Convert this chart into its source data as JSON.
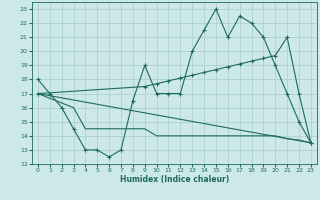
{
  "xlabel": "Humidex (Indice chaleur)",
  "xlim": [
    -0.5,
    23.5
  ],
  "ylim": [
    12,
    23.5
  ],
  "yticks": [
    12,
    13,
    14,
    15,
    16,
    17,
    18,
    19,
    20,
    21,
    22,
    23
  ],
  "xticks": [
    0,
    1,
    2,
    3,
    4,
    5,
    6,
    7,
    8,
    9,
    10,
    11,
    12,
    13,
    14,
    15,
    16,
    17,
    18,
    19,
    20,
    21,
    22,
    23
  ],
  "bg_color": "#cce8e8",
  "grid_color": "#aacccc",
  "line_color": "#1e6b5e",
  "line1_x": [
    0,
    1,
    2,
    3,
    4,
    5,
    6,
    7,
    8,
    9,
    10,
    11,
    12,
    13,
    14,
    15,
    16,
    17,
    18,
    19,
    20,
    21,
    22,
    23
  ],
  "line1_y": [
    18,
    17,
    16,
    14.5,
    13,
    13,
    12.5,
    13,
    16.5,
    19,
    17,
    17,
    17,
    20,
    21.5,
    23,
    21,
    22.5,
    22,
    21,
    19,
    17,
    15,
    13.5
  ],
  "line2_x": [
    0,
    9,
    10,
    11,
    12,
    13,
    14,
    15,
    16,
    17,
    18,
    19,
    20,
    21,
    22,
    23
  ],
  "line2_y": [
    17,
    17.5,
    17.7,
    17.9,
    18.1,
    18.3,
    18.5,
    18.7,
    18.9,
    19.1,
    19.3,
    19.5,
    19.7,
    21,
    17,
    13.5
  ],
  "line3_x": [
    0,
    3,
    4,
    5,
    6,
    7,
    8,
    9,
    10,
    11,
    12,
    13,
    14,
    15,
    16,
    17,
    18,
    19,
    20,
    21,
    22,
    23
  ],
  "line3_y": [
    17,
    16,
    14.5,
    14.5,
    14.5,
    14.5,
    14.5,
    14.5,
    14,
    14,
    14,
    14,
    14,
    14,
    14,
    14,
    14,
    14,
    14,
    13.8,
    13.7,
    13.5
  ],
  "line4_x": [
    0,
    23
  ],
  "line4_y": [
    17,
    13.5
  ]
}
